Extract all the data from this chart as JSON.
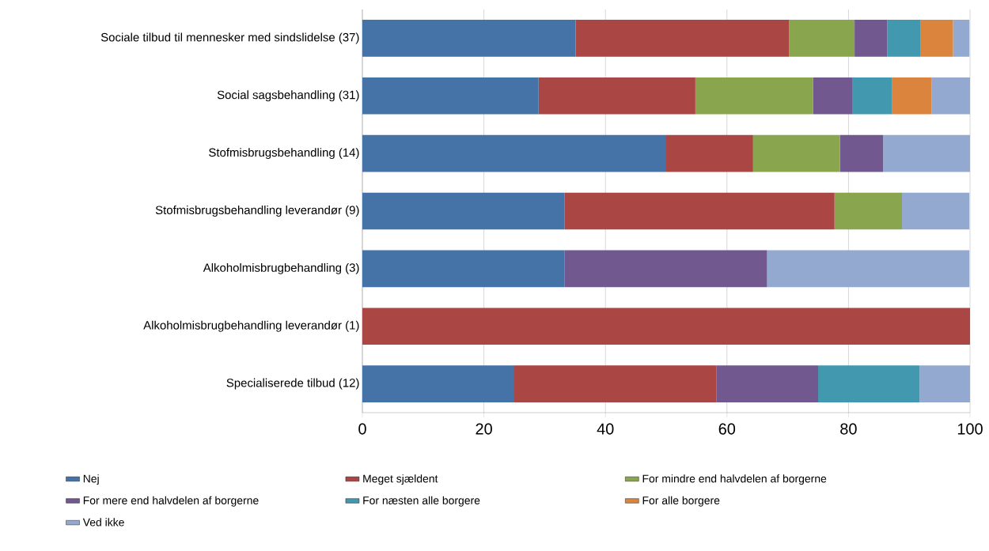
{
  "chart_data": {
    "type": "bar",
    "orientation": "horizontal",
    "stacked": true,
    "categories": [
      "Sociale tilbud til mennesker med sindslidelse (37)",
      "Social sagsbehandling (31)",
      "Stofmisbrugsbehandling (14)",
      "Stofmisbrugsbehandling leverandør (9)",
      "Alkoholmisbrugbehandling (3)",
      "Alkoholmisbrugbehandling leverandør (1)",
      "Specialiserede tilbud (12)"
    ],
    "series": [
      {
        "name": "Nej",
        "color": "#4572a7",
        "values": [
          35.1,
          29.0,
          50.0,
          33.3,
          33.3,
          0,
          25.0
        ]
      },
      {
        "name": "Meget sjældent",
        "color": "#aa4643",
        "values": [
          35.1,
          25.8,
          14.3,
          44.4,
          0,
          100,
          33.3
        ]
      },
      {
        "name": "For mindre end halvdelen af borgerne",
        "color": "#89a54e",
        "values": [
          10.8,
          19.4,
          14.3,
          11.1,
          0,
          0,
          0
        ]
      },
      {
        "name": "For mere end halvdelen af borgerne",
        "color": "#71588f",
        "values": [
          5.4,
          6.5,
          7.1,
          0,
          33.3,
          0,
          16.7
        ]
      },
      {
        "name": "For næsten alle borgere",
        "color": "#4198af",
        "values": [
          5.4,
          6.5,
          0,
          0,
          0,
          0,
          16.7
        ]
      },
      {
        "name": "For alle borgere",
        "color": "#db843d",
        "values": [
          5.4,
          6.5,
          0,
          0,
          0,
          0,
          0
        ]
      },
      {
        "name": "Ved ikke",
        "color": "#93a9cf",
        "values": [
          2.7,
          6.5,
          14.3,
          11.1,
          33.3,
          0,
          8.3
        ]
      }
    ],
    "xlim": [
      0,
      100
    ],
    "xticks": [
      0,
      20,
      40,
      60,
      80,
      100
    ],
    "grid": "x",
    "legend": "bottom"
  }
}
